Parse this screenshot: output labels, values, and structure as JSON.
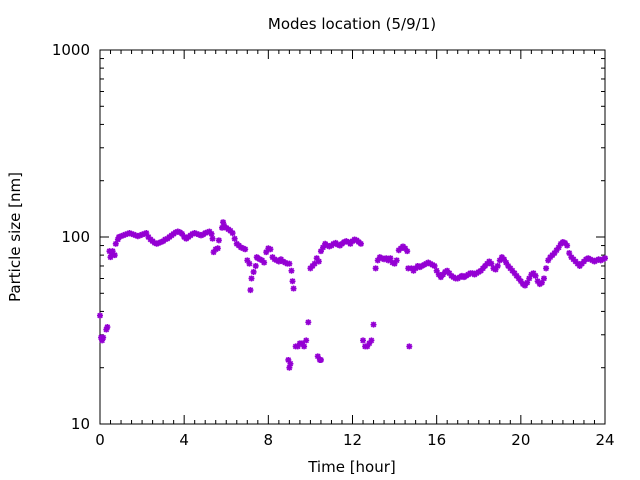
{
  "chart_data": {
    "type": "scatter",
    "title": "Modes location (5/9/1)",
    "xlabel": "Time [hour]",
    "ylabel": "Particle size [nm]",
    "xlim": [
      0,
      24
    ],
    "ylim": [
      10,
      1000
    ],
    "yscale": "log",
    "x_ticks": [
      0,
      4,
      8,
      12,
      16,
      20,
      24
    ],
    "x_tick_labels": [
      "0",
      "4",
      "8",
      "12",
      "16",
      "20",
      "24"
    ],
    "y_ticks": [
      10,
      100,
      1000
    ],
    "y_tick_labels": [
      "10",
      "100",
      "1000"
    ],
    "grid": false,
    "marker_color": "#9400d3",
    "series": [
      {
        "points": [
          [
            0.0,
            38
          ],
          [
            0.05,
            29
          ],
          [
            0.1,
            28
          ],
          [
            0.15,
            29
          ],
          [
            0.3,
            32
          ],
          [
            0.35,
            33
          ],
          [
            0.45,
            84
          ],
          [
            0.5,
            78
          ],
          [
            0.55,
            82
          ],
          [
            0.6,
            84
          ],
          [
            0.7,
            80
          ],
          [
            0.75,
            92
          ],
          [
            0.85,
            97
          ],
          [
            0.9,
            100
          ],
          [
            1.0,
            101
          ],
          [
            1.1,
            102
          ],
          [
            1.2,
            103
          ],
          [
            1.3,
            104
          ],
          [
            1.4,
            105
          ],
          [
            1.5,
            104
          ],
          [
            1.6,
            103
          ],
          [
            1.7,
            102
          ],
          [
            1.8,
            101
          ],
          [
            1.9,
            102
          ],
          [
            2.0,
            103
          ],
          [
            2.1,
            104
          ],
          [
            2.2,
            105
          ],
          [
            2.3,
            100
          ],
          [
            2.4,
            97
          ],
          [
            2.5,
            95
          ],
          [
            2.6,
            93
          ],
          [
            2.7,
            92
          ],
          [
            2.8,
            93
          ],
          [
            2.9,
            94
          ],
          [
            3.0,
            95
          ],
          [
            3.1,
            97
          ],
          [
            3.2,
            98
          ],
          [
            3.3,
            100
          ],
          [
            3.4,
            102
          ],
          [
            3.5,
            104
          ],
          [
            3.6,
            106
          ],
          [
            3.7,
            107
          ],
          [
            3.8,
            106
          ],
          [
            3.9,
            104
          ],
          [
            4.0,
            100
          ],
          [
            4.1,
            98
          ],
          [
            4.2,
            100
          ],
          [
            4.3,
            102
          ],
          [
            4.4,
            104
          ],
          [
            4.5,
            105
          ],
          [
            4.6,
            104
          ],
          [
            4.7,
            103
          ],
          [
            4.8,
            102
          ],
          [
            4.9,
            103
          ],
          [
            5.0,
            105
          ],
          [
            5.1,
            106
          ],
          [
            5.2,
            107
          ],
          [
            5.3,
            104
          ],
          [
            5.35,
            98
          ],
          [
            5.4,
            83
          ],
          [
            5.5,
            86
          ],
          [
            5.6,
            87
          ],
          [
            5.65,
            96
          ],
          [
            5.8,
            112
          ],
          [
            5.85,
            120
          ],
          [
            5.9,
            115
          ],
          [
            6.0,
            112
          ],
          [
            6.1,
            110
          ],
          [
            6.2,
            108
          ],
          [
            6.3,
            105
          ],
          [
            6.4,
            98
          ],
          [
            6.5,
            92
          ],
          [
            6.6,
            90
          ],
          [
            6.7,
            88
          ],
          [
            6.8,
            87
          ],
          [
            6.9,
            86
          ],
          [
            7.0,
            75
          ],
          [
            7.1,
            72
          ],
          [
            7.15,
            52
          ],
          [
            7.2,
            60
          ],
          [
            7.3,
            65
          ],
          [
            7.4,
            70
          ],
          [
            7.45,
            78
          ],
          [
            7.5,
            77
          ],
          [
            7.6,
            76
          ],
          [
            7.7,
            75
          ],
          [
            7.8,
            73
          ],
          [
            7.9,
            83
          ],
          [
            8.0,
            87
          ],
          [
            8.1,
            86
          ],
          [
            8.2,
            78
          ],
          [
            8.3,
            76
          ],
          [
            8.4,
            75
          ],
          [
            8.5,
            74
          ],
          [
            8.6,
            76
          ],
          [
            8.7,
            74
          ],
          [
            8.8,
            73
          ],
          [
            8.9,
            72
          ],
          [
            9.0,
            72
          ],
          [
            9.1,
            66
          ],
          [
            9.15,
            58
          ],
          [
            9.2,
            53
          ],
          [
            8.95,
            22
          ],
          [
            9.0,
            20
          ],
          [
            9.05,
            21
          ],
          [
            9.3,
            26
          ],
          [
            9.4,
            26
          ],
          [
            9.5,
            27
          ],
          [
            9.6,
            27
          ],
          [
            9.7,
            26
          ],
          [
            9.8,
            28
          ],
          [
            9.9,
            35
          ],
          [
            10.0,
            68
          ],
          [
            10.1,
            70
          ],
          [
            10.2,
            72
          ],
          [
            10.3,
            77
          ],
          [
            10.4,
            74
          ],
          [
            10.5,
            84
          ],
          [
            10.6,
            88
          ],
          [
            10.7,
            92
          ],
          [
            10.8,
            90
          ],
          [
            10.9,
            89
          ],
          [
            10.35,
            23
          ],
          [
            10.45,
            22
          ],
          [
            10.5,
            22
          ],
          [
            11.0,
            90
          ],
          [
            11.1,
            92
          ],
          [
            11.2,
            93
          ],
          [
            11.3,
            91
          ],
          [
            11.4,
            90
          ],
          [
            11.5,
            92
          ],
          [
            11.6,
            94
          ],
          [
            11.7,
            95
          ],
          [
            11.8,
            94
          ],
          [
            11.9,
            92
          ],
          [
            12.0,
            95
          ],
          [
            12.1,
            97
          ],
          [
            12.2,
            96
          ],
          [
            12.3,
            94
          ],
          [
            12.4,
            92
          ],
          [
            12.5,
            28
          ],
          [
            12.6,
            26
          ],
          [
            12.7,
            26
          ],
          [
            12.8,
            27
          ],
          [
            12.9,
            28
          ],
          [
            13.0,
            34
          ],
          [
            13.1,
            68
          ],
          [
            13.2,
            75
          ],
          [
            13.3,
            78
          ],
          [
            13.4,
            77
          ],
          [
            13.5,
            76
          ],
          [
            13.6,
            77
          ],
          [
            13.7,
            75
          ],
          [
            13.8,
            77
          ],
          [
            13.9,
            73
          ],
          [
            14.0,
            72
          ],
          [
            14.1,
            75
          ],
          [
            14.2,
            85
          ],
          [
            14.3,
            87
          ],
          [
            14.4,
            89
          ],
          [
            14.5,
            87
          ],
          [
            14.6,
            84
          ],
          [
            14.65,
            68
          ],
          [
            14.7,
            26
          ],
          [
            14.8,
            68
          ],
          [
            14.9,
            66
          ],
          [
            15.0,
            68
          ],
          [
            15.1,
            70
          ],
          [
            15.2,
            69
          ],
          [
            15.3,
            70
          ],
          [
            15.4,
            71
          ],
          [
            15.5,
            72
          ],
          [
            15.6,
            73
          ],
          [
            15.7,
            72
          ],
          [
            15.8,
            71
          ],
          [
            15.9,
            70
          ],
          [
            16.0,
            66
          ],
          [
            16.1,
            63
          ],
          [
            16.2,
            61
          ],
          [
            16.3,
            63
          ],
          [
            16.4,
            65
          ],
          [
            16.5,
            66
          ],
          [
            16.6,
            64
          ],
          [
            16.7,
            62
          ],
          [
            16.8,
            61
          ],
          [
            16.9,
            60
          ],
          [
            17.0,
            60
          ],
          [
            17.1,
            61
          ],
          [
            17.2,
            62
          ],
          [
            17.3,
            61
          ],
          [
            17.4,
            62
          ],
          [
            17.5,
            63
          ],
          [
            17.6,
            64
          ],
          [
            17.7,
            64
          ],
          [
            17.8,
            63
          ],
          [
            17.9,
            64
          ],
          [
            18.0,
            65
          ],
          [
            18.1,
            66
          ],
          [
            18.2,
            68
          ],
          [
            18.3,
            70
          ],
          [
            18.4,
            72
          ],
          [
            18.5,
            74
          ],
          [
            18.6,
            72
          ],
          [
            18.7,
            68
          ],
          [
            18.8,
            67
          ],
          [
            18.9,
            70
          ],
          [
            19.0,
            75
          ],
          [
            19.1,
            78
          ],
          [
            19.2,
            76
          ],
          [
            19.3,
            73
          ],
          [
            19.4,
            70
          ],
          [
            19.5,
            68
          ],
          [
            19.6,
            66
          ],
          [
            19.7,
            64
          ],
          [
            19.8,
            62
          ],
          [
            19.9,
            60
          ],
          [
            20.0,
            58
          ],
          [
            20.1,
            56
          ],
          [
            20.2,
            55
          ],
          [
            20.3,
            57
          ],
          [
            20.4,
            60
          ],
          [
            20.5,
            63
          ],
          [
            20.6,
            64
          ],
          [
            20.7,
            62
          ],
          [
            20.8,
            58
          ],
          [
            20.9,
            56
          ],
          [
            21.0,
            57
          ],
          [
            21.1,
            60
          ],
          [
            21.2,
            68
          ],
          [
            21.3,
            75
          ],
          [
            21.4,
            78
          ],
          [
            21.5,
            80
          ],
          [
            21.6,
            82
          ],
          [
            21.7,
            85
          ],
          [
            21.8,
            88
          ],
          [
            21.9,
            92
          ],
          [
            22.0,
            94
          ],
          [
            22.1,
            93
          ],
          [
            22.2,
            90
          ],
          [
            22.3,
            82
          ],
          [
            22.4,
            78
          ],
          [
            22.5,
            76
          ],
          [
            22.6,
            74
          ],
          [
            22.7,
            72
          ],
          [
            22.8,
            70
          ],
          [
            22.9,
            72
          ],
          [
            23.0,
            74
          ],
          [
            23.1,
            76
          ],
          [
            23.2,
            77
          ],
          [
            23.3,
            76
          ],
          [
            23.4,
            75
          ],
          [
            23.5,
            74
          ],
          [
            23.6,
            75
          ],
          [
            23.7,
            76
          ],
          [
            23.8,
            75
          ],
          [
            23.9,
            76
          ],
          [
            24.0,
            77
          ]
        ]
      }
    ]
  }
}
